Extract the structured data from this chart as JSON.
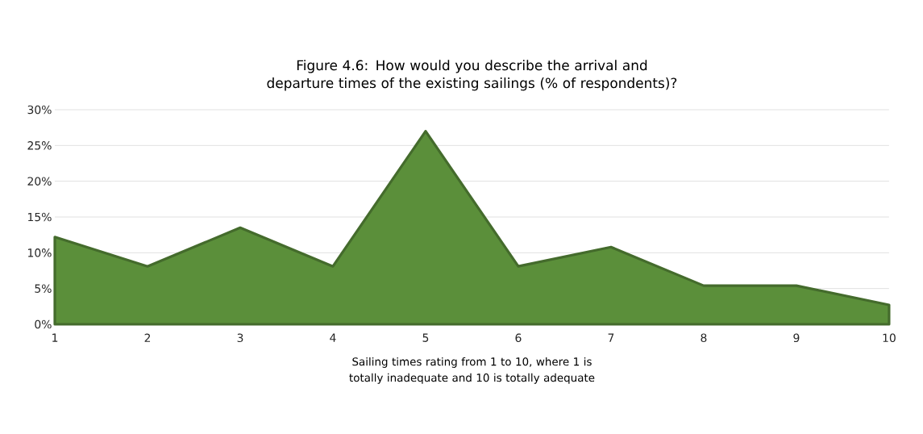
{
  "chart_data": {
    "type": "area",
    "title": "Figure 4.6: How would you describe the arrival and departure times of the existing sailings (% of respondents)?",
    "xlabel": "Sailing times rating from 1 to 10, where 1 is totally inadequate and 10 is totally adequate",
    "x": [
      1,
      2,
      3,
      4,
      5,
      6,
      7,
      8,
      9,
      10
    ],
    "values": [
      12.2,
      8.1,
      13.5,
      8.1,
      27.0,
      8.1,
      10.8,
      5.4,
      5.4,
      2.7
    ],
    "color": "#5b8f3a",
    "xlim": [
      1,
      10
    ],
    "xticks": [
      1,
      2,
      3,
      4,
      5,
      6,
      7,
      8,
      9,
      10
    ],
    "ylim": [
      0,
      30
    ],
    "yticks": [
      {
        "value": 0,
        "label": "0%"
      },
      {
        "value": 5,
        "label": "5%"
      },
      {
        "value": 10,
        "label": "10%"
      },
      {
        "value": 15,
        "label": "15%"
      },
      {
        "value": 20,
        "label": "20%"
      },
      {
        "value": 25,
        "label": "25%"
      },
      {
        "value": 30,
        "label": "30%"
      }
    ],
    "grid": "y"
  }
}
